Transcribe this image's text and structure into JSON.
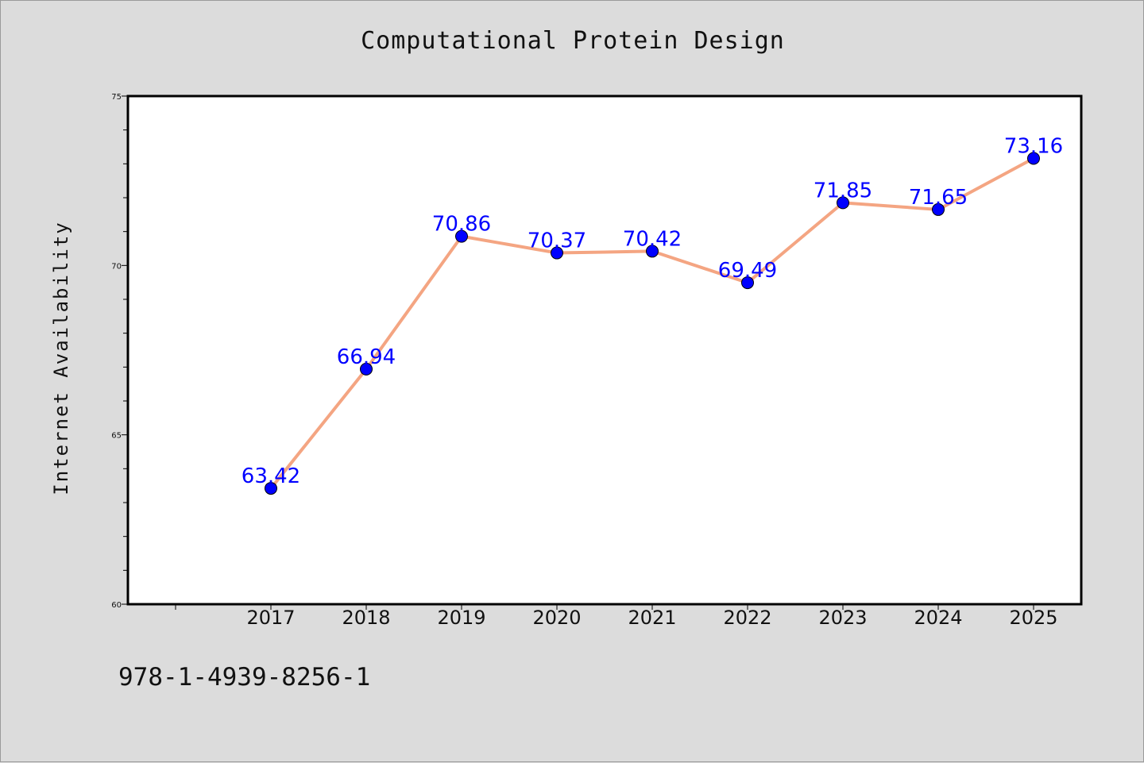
{
  "chart_data": {
    "type": "line",
    "title": "Computational Protein Design",
    "xlabel": "",
    "ylabel": "Internet Availability",
    "categories": [
      "2017",
      "2018",
      "2019",
      "2020",
      "2021",
      "2022",
      "2023",
      "2024",
      "2025"
    ],
    "series": [
      {
        "values": [
          63.42,
          66.94,
          70.86,
          70.37,
          70.42,
          69.49,
          71.85,
          71.65,
          73.16
        ],
        "line_color": "#f4a582",
        "marker_color": "#0000ff"
      }
    ],
    "ylim": [
      60,
      75
    ],
    "yticks": [
      60,
      65,
      70,
      75
    ],
    "data_labels": [
      "63.42",
      "66.94",
      "70.86",
      "70.37",
      "70.42",
      "69.49",
      "71.85",
      "71.65",
      "73.16"
    ],
    "data_label_color": "#0000ff",
    "grid": false,
    "legend": "none"
  },
  "footer": {
    "code": "978-1-4939-8256-1"
  },
  "colors": {
    "background": "#dcdcdc",
    "plot_background": "#ffffff"
  }
}
